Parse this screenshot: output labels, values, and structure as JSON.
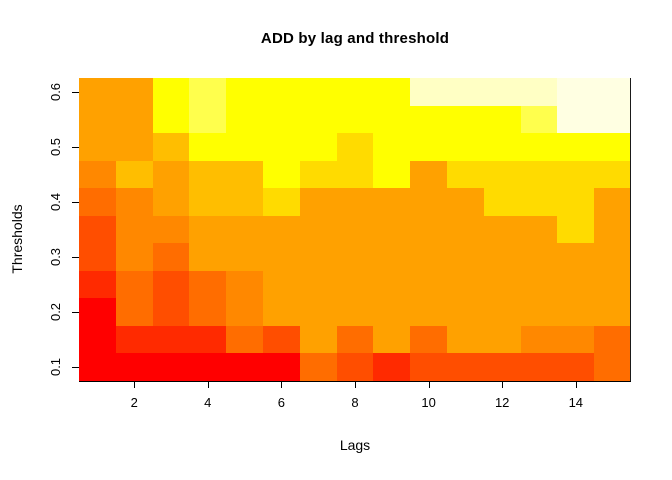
{
  "title": "ADD by lag and threshold",
  "x_axis": {
    "label": "Lags",
    "ticks": [
      2,
      4,
      6,
      8,
      10,
      12,
      14
    ]
  },
  "y_axis": {
    "label": "Thresholds",
    "ticks": [
      0.1,
      0.2,
      0.3,
      0.4,
      0.5,
      0.6
    ]
  },
  "chart_data": {
    "type": "heatmap",
    "title": "ADD by lag and threshold",
    "xlabel": "Lags",
    "ylabel": "Thresholds",
    "x_values": [
      1,
      2,
      3,
      4,
      5,
      6,
      7,
      8,
      9,
      10,
      11,
      12,
      13,
      14,
      15
    ],
    "y_values_bottom_to_top": [
      0.1,
      0.15,
      0.2,
      0.25,
      0.3,
      0.35,
      0.4,
      0.45,
      0.5,
      0.55,
      0.6
    ],
    "x_range": [
      0.5,
      15.5
    ],
    "y_range": [
      0.075,
      0.625
    ],
    "grid_on": false,
    "legend": "none",
    "palette_low_to_high": [
      "#FF0000",
      "#FF2A00",
      "#FF4E00",
      "#FF6D00",
      "#FF8800",
      "#FFA100",
      "#FFBE00",
      "#FFDB00",
      "#FFFF00",
      "#FFFF4D",
      "#FFFFC4",
      "#FFFFE2"
    ],
    "rows_top_to_bottom": [
      {
        "threshold": 0.6,
        "cells": [
          5,
          5,
          8,
          9,
          8,
          8,
          8,
          8,
          8,
          10,
          10,
          10,
          10,
          11,
          11
        ]
      },
      {
        "threshold": 0.55,
        "cells": [
          5,
          5,
          8,
          9,
          8,
          8,
          8,
          8,
          8,
          8,
          8,
          8,
          9,
          11,
          11
        ]
      },
      {
        "threshold": 0.5,
        "cells": [
          5,
          5,
          6,
          8,
          8,
          8,
          8,
          7,
          8,
          8,
          8,
          8,
          8,
          8,
          8
        ]
      },
      {
        "threshold": 0.45,
        "cells": [
          4,
          6,
          5,
          6,
          6,
          8,
          7,
          7,
          8,
          5,
          7,
          7,
          7,
          7,
          7
        ]
      },
      {
        "threshold": 0.4,
        "cells": [
          3,
          4,
          5,
          6,
          6,
          7,
          5,
          5,
          5,
          5,
          5,
          7,
          7,
          7,
          5
        ]
      },
      {
        "threshold": 0.35,
        "cells": [
          2,
          4,
          4,
          5,
          5,
          5,
          5,
          5,
          5,
          5,
          5,
          5,
          5,
          7,
          5
        ]
      },
      {
        "threshold": 0.3,
        "cells": [
          2,
          4,
          3,
          5,
          5,
          5,
          5,
          5,
          5,
          5,
          5,
          5,
          5,
          5,
          5
        ]
      },
      {
        "threshold": 0.25,
        "cells": [
          1,
          3,
          2,
          3,
          4,
          5,
          5,
          5,
          5,
          5,
          5,
          5,
          5,
          5,
          5
        ]
      },
      {
        "threshold": 0.2,
        "cells": [
          0,
          3,
          2,
          3,
          4,
          5,
          5,
          5,
          5,
          5,
          5,
          5,
          5,
          5,
          5
        ]
      },
      {
        "threshold": 0.15,
        "cells": [
          0,
          1,
          1,
          1,
          3,
          2,
          5,
          3,
          5,
          3,
          5,
          5,
          4,
          4,
          3
        ]
      },
      {
        "threshold": 0.1,
        "cells": [
          0,
          0,
          0,
          0,
          0,
          0,
          3,
          2,
          1,
          2,
          2,
          2,
          2,
          2,
          3
        ]
      }
    ]
  }
}
